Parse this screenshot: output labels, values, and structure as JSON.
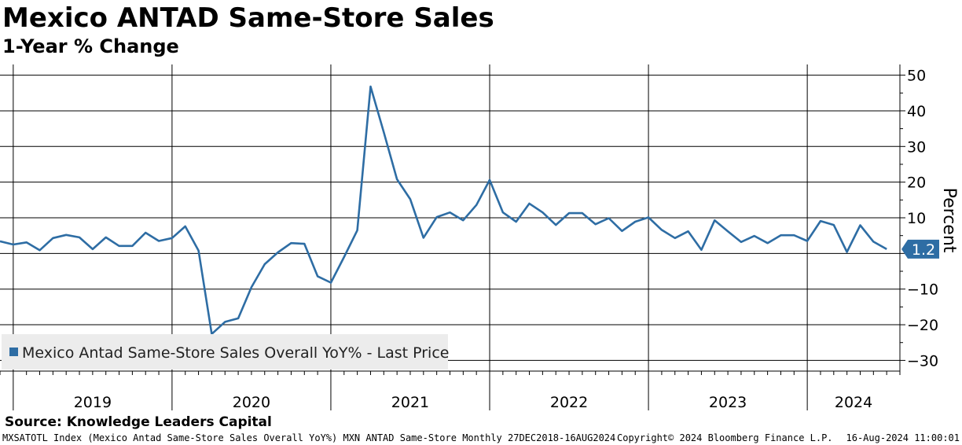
{
  "header": {
    "title": "Mexico ANTAD Same-Store Sales",
    "subtitle": "1-Year % Change"
  },
  "footer": {
    "source": "Source: Knowledge Leaders Capital",
    "ticker_info": "MXSATOTL Index (Mexico Antad Same-Store Sales Overall YoY%) MXN ANTAD Same-Store  Monthly 27DEC2018-16AUG2024",
    "copyright": "Copyright© 2024 Bloomberg Finance L.P.",
    "timestamp": "16-Aug-2024 11:00:01"
  },
  "chart_data": {
    "type": "line",
    "ylabel": "Percent",
    "ylim": [
      -33,
      53
    ],
    "y_ticks": [
      50,
      40,
      30,
      20,
      10,
      0,
      -10,
      -20,
      -30
    ],
    "y_tick_labels": [
      "50",
      "40",
      "30",
      "20",
      "10",
      "",
      "-10",
      "-20",
      "-30"
    ],
    "x_labels": [
      "2019",
      "2020",
      "2021",
      "2022",
      "2023",
      "2024"
    ],
    "x_start": "2018-12",
    "x_end": "2024-08",
    "grid": true,
    "legend_position": "bottom-left",
    "line_color": "#2e6da4",
    "last_value_label": "1.2",
    "series": [
      {
        "name": "Mexico Antad Same-Store Sales Overall YoY% - Last Price",
        "dates": [
          "2018-12",
          "2019-01",
          "2019-02",
          "2019-03",
          "2019-04",
          "2019-05",
          "2019-06",
          "2019-07",
          "2019-08",
          "2019-09",
          "2019-10",
          "2019-11",
          "2019-12",
          "2020-01",
          "2020-02",
          "2020-03",
          "2020-04",
          "2020-05",
          "2020-06",
          "2020-07",
          "2020-08",
          "2020-09",
          "2020-10",
          "2020-11",
          "2020-12",
          "2021-01",
          "2021-02",
          "2021-03",
          "2021-04",
          "2021-05",
          "2021-06",
          "2021-07",
          "2021-08",
          "2021-09",
          "2021-10",
          "2021-11",
          "2021-12",
          "2022-01",
          "2022-02",
          "2022-03",
          "2022-04",
          "2022-05",
          "2022-06",
          "2022-07",
          "2022-08",
          "2022-09",
          "2022-10",
          "2022-11",
          "2022-12",
          "2023-01",
          "2023-02",
          "2023-03",
          "2023-04",
          "2023-05",
          "2023-06",
          "2023-07",
          "2023-08",
          "2023-09",
          "2023-10",
          "2023-11",
          "2023-12",
          "2024-01",
          "2024-02",
          "2024-03",
          "2024-04",
          "2024-05",
          "2024-06",
          "2024-07"
        ],
        "values": [
          3.4,
          2.5,
          3.1,
          0.9,
          4.3,
          5.2,
          4.5,
          1.2,
          4.5,
          2.1,
          2.1,
          5.8,
          3.5,
          4.3,
          7.6,
          0.8,
          -22.6,
          -19.2,
          -18.2,
          -9.5,
          -3.0,
          0.3,
          2.9,
          2.7,
          -6.4,
          -8.2,
          -1.0,
          6.5,
          46.8,
          34.0,
          20.8,
          15.2,
          4.4,
          10.2,
          11.5,
          9.3,
          13.6,
          20.6,
          11.5,
          8.9,
          14.0,
          11.5,
          8.0,
          11.3,
          11.3,
          8.2,
          9.9,
          6.3,
          8.9,
          10.1,
          6.6,
          4.3,
          6.2,
          1.0,
          9.3,
          6.2,
          3.2,
          4.9,
          2.9,
          5.1,
          5.1,
          3.5,
          9.1,
          8.0,
          0.4,
          7.9,
          3.3,
          1.2
        ]
      }
    ]
  }
}
